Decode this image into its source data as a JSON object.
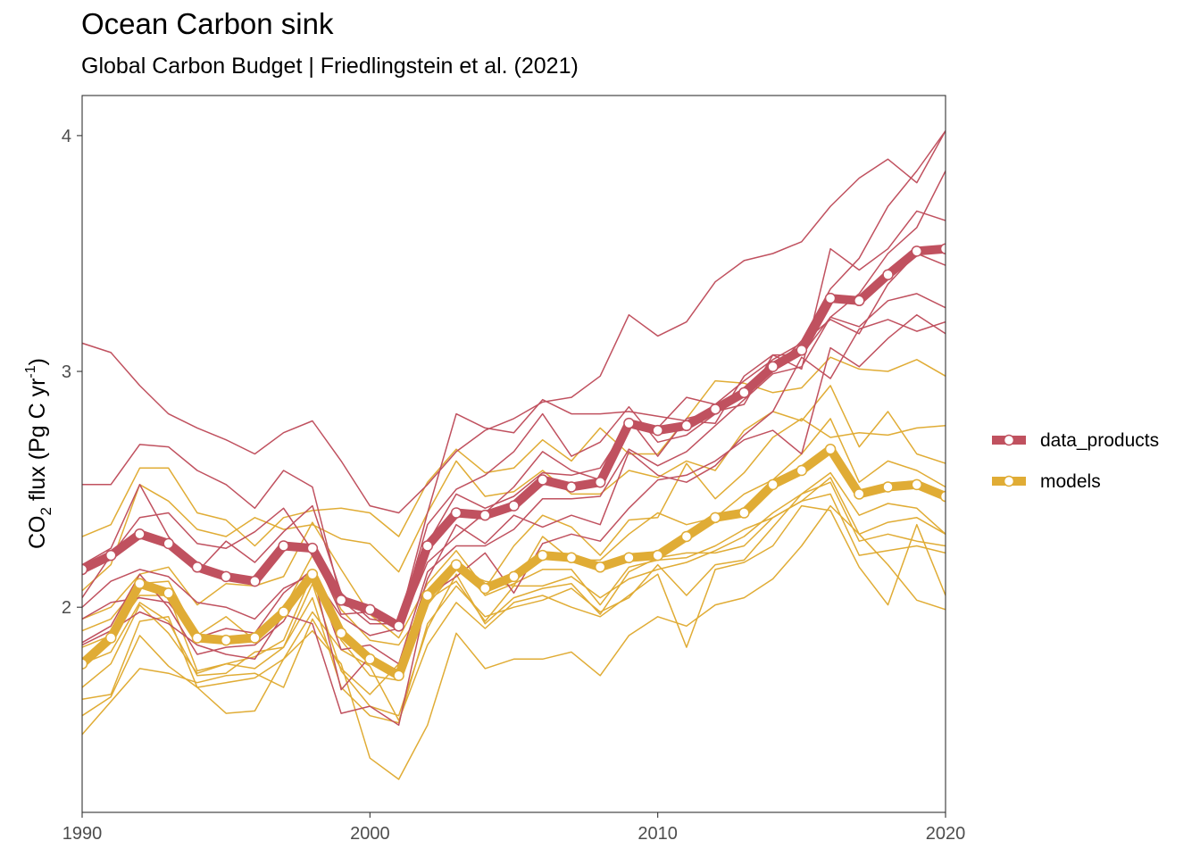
{
  "chart_data": {
    "type": "line",
    "title": "Ocean Carbon sink",
    "subtitle": "Global Carbon Budget | Friedlingstein et al. (2021)",
    "ylabel": {
      "base": "CO",
      "sub": "2",
      "rest": " flux (Pg C yr",
      "sup": "-1",
      "close": ")"
    },
    "xlabel": "",
    "xlim": [
      1990,
      2020
    ],
    "ylim": [
      1.13,
      4.17
    ],
    "x_ticks": [
      1990,
      2000,
      2010,
      2020
    ],
    "y_ticks": [
      2,
      3,
      4
    ],
    "grid": false,
    "legend_position": "right",
    "colors": {
      "data_products": "#c0515f",
      "models": "#e0ac35"
    },
    "series": [
      {
        "name": "data_products",
        "color": "#c0515f",
        "x": [
          1990,
          1991,
          1992,
          1993,
          1994,
          1995,
          1996,
          1997,
          1998,
          1999,
          2000,
          2001,
          2002,
          2003,
          2004,
          2005,
          2006,
          2007,
          2008,
          2009,
          2010,
          2011,
          2012,
          2013,
          2014,
          2015,
          2016,
          2017,
          2018,
          2019,
          2020
        ],
        "values": [
          2.16,
          2.22,
          2.31,
          2.27,
          2.17,
          2.13,
          2.11,
          2.26,
          2.25,
          2.03,
          1.99,
          1.92,
          2.26,
          2.4,
          2.39,
          2.43,
          2.54,
          2.51,
          2.53,
          2.78,
          2.75,
          2.77,
          2.84,
          2.91,
          3.02,
          3.09,
          3.31,
          3.3,
          3.41,
          3.51,
          3.52
        ]
      },
      {
        "name": "models",
        "color": "#e0ac35",
        "x": [
          1990,
          1991,
          1992,
          1993,
          1994,
          1995,
          1996,
          1997,
          1998,
          1999,
          2000,
          2001,
          2002,
          2003,
          2004,
          2005,
          2006,
          2007,
          2008,
          2009,
          2010,
          2011,
          2012,
          2013,
          2014,
          2015,
          2016,
          2017,
          2018,
          2019,
          2020
        ],
        "values": [
          1.76,
          1.87,
          2.1,
          2.06,
          1.87,
          1.86,
          1.87,
          1.98,
          2.14,
          1.89,
          1.78,
          1.71,
          2.05,
          2.18,
          2.08,
          2.13,
          2.22,
          2.21,
          2.17,
          2.21,
          2.22,
          2.3,
          2.38,
          2.4,
          2.52,
          2.58,
          2.67,
          2.48,
          2.51,
          2.52,
          2.47
        ]
      }
    ],
    "members": {
      "data_products": [
        [
          3.12,
          3.08,
          2.94,
          2.82,
          2.76,
          2.71,
          2.65,
          2.74,
          2.79,
          2.62,
          2.43,
          2.4,
          2.52,
          2.66,
          2.75,
          2.8,
          2.87,
          2.89,
          2.98,
          3.24,
          3.15,
          3.21,
          3.38,
          3.47,
          3.5,
          3.55,
          3.7,
          3.82,
          3.9,
          3.8,
          4.02
        ],
        [
          2.52,
          2.52,
          2.69,
          2.68,
          2.58,
          2.52,
          2.42,
          2.58,
          2.51,
          2.03,
          1.93,
          1.93,
          2.4,
          2.82,
          2.76,
          2.74,
          2.88,
          2.82,
          2.82,
          2.83,
          2.81,
          2.79,
          2.78,
          2.98,
          3.07,
          3.01,
          3.52,
          3.43,
          3.52,
          3.68,
          3.64
        ],
        [
          2.18,
          2.25,
          2.52,
          2.3,
          2.15,
          2.28,
          2.19,
          2.32,
          2.43,
          2.06,
          1.95,
          1.93,
          2.35,
          2.5,
          2.56,
          2.66,
          2.82,
          2.64,
          2.7,
          2.85,
          2.7,
          2.73,
          2.82,
          2.92,
          3.0,
          3.13,
          3.35,
          3.48,
          3.7,
          3.85,
          4.02
        ],
        [
          2.04,
          2.22,
          2.38,
          2.4,
          2.27,
          2.25,
          2.32,
          2.42,
          2.24,
          1.97,
          1.98,
          1.9,
          2.19,
          2.3,
          2.4,
          2.51,
          2.66,
          2.58,
          2.54,
          2.8,
          2.64,
          2.8,
          2.83,
          2.86,
          3.07,
          3.07,
          3.23,
          3.33,
          3.5,
          3.61,
          3.85
        ],
        [
          2.0,
          2.11,
          2.16,
          2.13,
          2.02,
          2.0,
          1.95,
          2.08,
          2.14,
          1.96,
          1.88,
          1.91,
          2.27,
          2.48,
          2.42,
          2.47,
          2.57,
          2.56,
          2.59,
          2.78,
          2.76,
          2.89,
          2.86,
          2.96,
          3.05,
          3.12,
          3.22,
          3.16,
          3.37,
          3.5,
          3.45
        ],
        [
          1.95,
          2.02,
          2.04,
          2.02,
          1.87,
          1.91,
          1.89,
          2.06,
          2.16,
          1.82,
          1.84,
          1.76,
          2.15,
          2.26,
          2.26,
          2.33,
          2.46,
          2.46,
          2.47,
          2.67,
          2.6,
          2.66,
          2.77,
          2.88,
          2.99,
          3.02,
          3.23,
          3.19,
          3.3,
          3.33,
          3.27
        ],
        [
          1.85,
          1.92,
          2.14,
          2.0,
          1.8,
          1.83,
          1.84,
          1.94,
          2.15,
          1.65,
          1.79,
          1.73,
          2.12,
          2.35,
          2.27,
          2.39,
          2.34,
          2.39,
          2.35,
          2.66,
          2.56,
          2.53,
          2.6,
          2.73,
          2.83,
          3.06,
          2.97,
          3.18,
          3.22,
          3.17,
          3.21
        ],
        [
          1.84,
          1.9,
          1.98,
          1.93,
          1.84,
          1.8,
          1.78,
          1.97,
          1.93,
          1.55,
          1.58,
          1.5,
          2.05,
          2.13,
          2.23,
          2.06,
          2.27,
          2.31,
          2.28,
          2.42,
          2.54,
          2.56,
          2.62,
          2.71,
          2.75,
          2.65,
          3.1,
          3.02,
          3.14,
          3.24,
          3.16
        ]
      ],
      "models": [
        [
          2.3,
          2.35,
          2.59,
          2.59,
          2.4,
          2.37,
          2.26,
          2.38,
          2.41,
          2.42,
          2.4,
          2.3,
          2.53,
          2.67,
          2.57,
          2.59,
          2.71,
          2.62,
          2.76,
          2.65,
          2.65,
          2.8,
          2.96,
          2.95,
          2.91,
          2.93,
          3.06,
          3.01,
          3.0,
          3.05,
          2.98
        ],
        [
          2.07,
          2.18,
          2.52,
          2.45,
          2.33,
          2.3,
          2.38,
          2.33,
          2.35,
          2.29,
          2.27,
          2.15,
          2.4,
          2.62,
          2.47,
          2.49,
          2.58,
          2.48,
          2.48,
          2.58,
          2.55,
          2.62,
          2.58,
          2.75,
          2.83,
          2.79,
          2.94,
          2.68,
          2.83,
          2.65,
          2.61
        ],
        [
          1.95,
          2.0,
          2.14,
          2.17,
          2.01,
          2.1,
          2.09,
          2.13,
          2.36,
          2.16,
          1.97,
          1.87,
          2.1,
          2.24,
          2.08,
          2.26,
          2.39,
          2.34,
          2.22,
          2.37,
          2.38,
          2.61,
          2.46,
          2.57,
          2.72,
          2.8,
          2.72,
          2.74,
          2.73,
          2.76,
          2.77
        ],
        [
          1.9,
          1.95,
          2.1,
          2.11,
          1.88,
          1.96,
          1.86,
          1.99,
          2.22,
          1.99,
          1.86,
          1.84,
          2.01,
          2.16,
          2.11,
          2.09,
          2.3,
          2.2,
          2.2,
          2.31,
          2.4,
          2.35,
          2.38,
          2.48,
          2.54,
          2.65,
          2.8,
          2.53,
          2.62,
          2.58,
          2.51
        ],
        [
          1.83,
          1.88,
          2.05,
          2.05,
          1.73,
          1.76,
          1.79,
          1.86,
          2.14,
          1.86,
          1.71,
          1.69,
          2.07,
          2.19,
          2.05,
          2.1,
          2.16,
          2.16,
          2.01,
          2.17,
          2.2,
          2.21,
          2.26,
          2.33,
          2.38,
          2.45,
          2.55,
          2.31,
          2.36,
          2.38,
          2.31
        ],
        [
          1.76,
          1.81,
          2.02,
          1.94,
          1.71,
          1.72,
          1.81,
          1.83,
          2.1,
          1.73,
          1.58,
          1.54,
          1.91,
          2.14,
          1.93,
          2.04,
          2.08,
          2.1,
          1.97,
          2.15,
          2.21,
          2.23,
          2.23,
          2.26,
          2.38,
          2.45,
          2.48,
          2.22,
          2.24,
          2.26,
          2.23
        ],
        [
          1.66,
          1.76,
          2.01,
          1.89,
          1.72,
          1.76,
          1.74,
          1.83,
          2.04,
          1.66,
          1.54,
          1.51,
          1.93,
          2.09,
          1.96,
          2.0,
          2.03,
          2.08,
          1.98,
          2.04,
          2.18,
          2.05,
          2.18,
          2.2,
          2.34,
          2.48,
          2.53,
          2.28,
          2.31,
          2.28,
          2.26
        ],
        [
          1.61,
          1.63,
          1.94,
          1.96,
          1.66,
          1.55,
          1.56,
          1.78,
          1.98,
          1.82,
          1.75,
          1.52,
          1.84,
          2.02,
          1.91,
          2.02,
          2.05,
          2.0,
          1.96,
          2.05,
          2.14,
          1.83,
          2.16,
          2.19,
          2.26,
          2.43,
          2.41,
          2.17,
          2.01,
          2.35,
          2.05
        ],
        [
          1.54,
          1.62,
          1.88,
          1.75,
          1.66,
          1.68,
          1.7,
          1.78,
          1.9,
          1.76,
          1.36,
          1.27,
          1.5,
          1.89,
          1.74,
          1.78,
          1.78,
          1.81,
          1.71,
          1.88,
          1.96,
          1.92,
          2.01,
          2.04,
          2.12,
          2.26,
          2.43,
          2.31,
          2.18,
          2.03,
          1.99
        ],
        [
          1.46,
          1.6,
          1.74,
          1.72,
          1.68,
          1.71,
          1.72,
          1.66,
          1.95,
          1.74,
          1.63,
          1.76,
          2.03,
          2.11,
          1.94,
          2.09,
          2.09,
          2.13,
          2.04,
          2.12,
          2.16,
          2.19,
          2.24,
          2.3,
          2.4,
          2.48,
          2.57,
          2.39,
          2.44,
          2.42,
          2.31
        ]
      ]
    }
  }
}
